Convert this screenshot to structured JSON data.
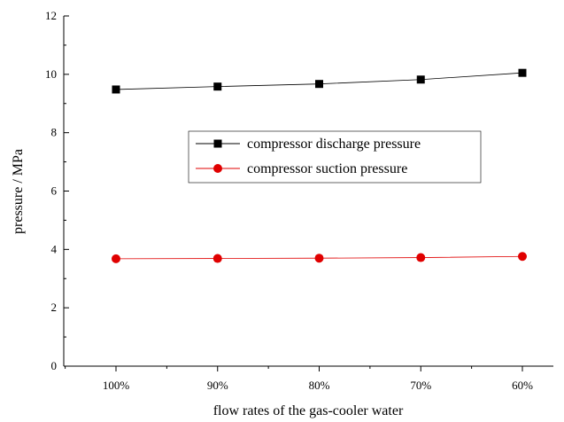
{
  "chart_data": {
    "type": "line",
    "xlabel": "flow rates of the gas-cooler water",
    "ylabel": "pressure / MPa",
    "categories": [
      "100%",
      "90%",
      "80%",
      "70%",
      "60%"
    ],
    "ylim": [
      0,
      12
    ],
    "yticks": [
      "0",
      "2",
      "4",
      "6",
      "8",
      "10",
      "12"
    ],
    "grid": false,
    "legend_position": "center",
    "series": [
      {
        "name": "compressor discharge pressure",
        "values": [
          9.48,
          9.58,
          9.67,
          9.82,
          10.05
        ],
        "color": "#000000",
        "marker": "square"
      },
      {
        "name": "compressor suction pressure",
        "values": [
          3.68,
          3.69,
          3.7,
          3.72,
          3.76
        ],
        "color": "#e00000",
        "marker": "circle"
      }
    ]
  }
}
